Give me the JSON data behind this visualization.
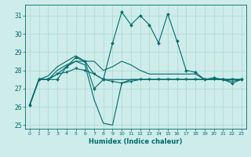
{
  "xlabel": "Humidex (Indice chaleur)",
  "xlim": [
    -0.5,
    23.5
  ],
  "ylim": [
    24.8,
    31.6
  ],
  "yticks": [
    25,
    26,
    27,
    28,
    29,
    30,
    31
  ],
  "xticks": [
    0,
    1,
    2,
    3,
    4,
    5,
    6,
    7,
    8,
    9,
    10,
    11,
    12,
    13,
    14,
    15,
    16,
    17,
    18,
    19,
    20,
    21,
    22,
    23
  ],
  "bg_color": "#ceecea",
  "line_color": "#006b6b",
  "grid_color": "#aad8d4",
  "s1_y": [
    26.1,
    27.5,
    27.5,
    27.5,
    28.2,
    28.7,
    28.5,
    27.0,
    27.5,
    29.5,
    31.2,
    30.5,
    31.0,
    30.5,
    29.5,
    31.1,
    29.6,
    28.0,
    27.9,
    27.5,
    27.6,
    27.5,
    27.3,
    27.5
  ],
  "s2_y": [
    26.1,
    27.5,
    27.5,
    27.8,
    28.2,
    28.5,
    28.3,
    26.4,
    25.1,
    25.0,
    27.3,
    27.5,
    27.5,
    27.5,
    27.5,
    27.5,
    27.5,
    27.5,
    27.5,
    27.5,
    27.5,
    27.5,
    27.5,
    27.5
  ],
  "s3_y": [
    26.1,
    27.5,
    27.7,
    28.2,
    28.5,
    28.8,
    28.5,
    28.5,
    28.0,
    28.2,
    28.5,
    28.3,
    28.0,
    27.8,
    27.8,
    27.8,
    27.8,
    27.8,
    27.8,
    27.5,
    27.5,
    27.5,
    27.4,
    27.5
  ],
  "s4_y": [
    26.1,
    27.5,
    27.5,
    28.0,
    28.3,
    28.5,
    28.5,
    27.8,
    27.5,
    27.5,
    27.5,
    27.5,
    27.5,
    27.5,
    27.5,
    27.5,
    27.5,
    27.5,
    27.5,
    27.5,
    27.5,
    27.5,
    27.5,
    27.5
  ],
  "s5_y": [
    26.1,
    27.5,
    27.5,
    27.8,
    27.9,
    28.1,
    28.0,
    27.8,
    27.5,
    27.4,
    27.3,
    27.4,
    27.5,
    27.5,
    27.5,
    27.5,
    27.5,
    27.5,
    27.5,
    27.5,
    27.5,
    27.5,
    27.5,
    27.5
  ]
}
